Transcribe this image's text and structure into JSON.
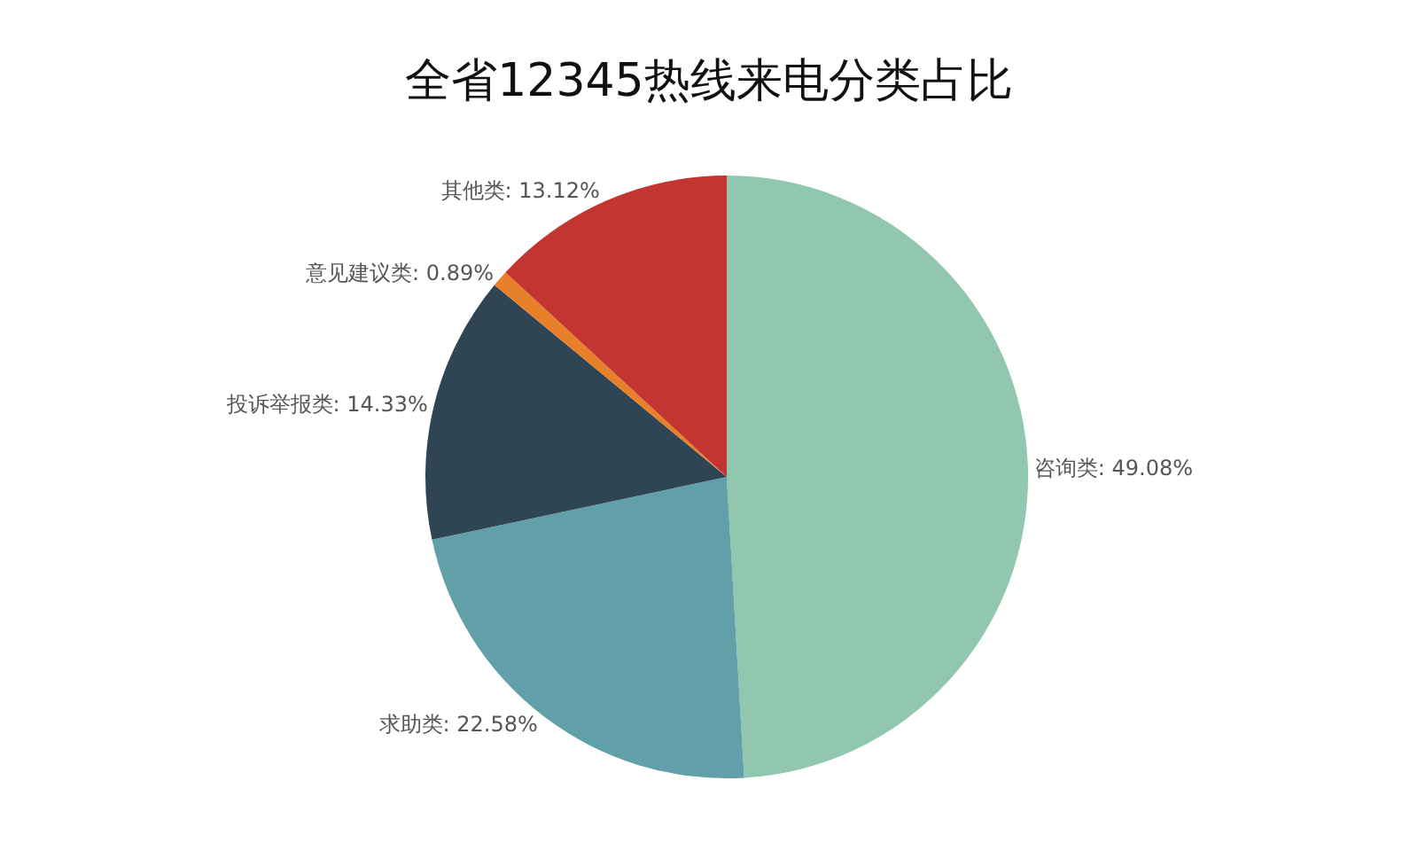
{
  "chart_data": {
    "type": "pie",
    "title": "全省12345热线来电分类占比",
    "categories": [
      "咨询类",
      "求助类",
      "投诉举报类",
      "意见建议类",
      "其他类"
    ],
    "values": [
      49.08,
      22.58,
      14.33,
      0.89,
      13.12
    ],
    "colors": [
      "#91c7ae",
      "#61a0a8",
      "#2f4554",
      "#e8802a",
      "#c23531"
    ],
    "value_labels": [
      "49.08%",
      "22.58%",
      "14.33%",
      "0.89%",
      "13.12%"
    ],
    "legend": false
  }
}
